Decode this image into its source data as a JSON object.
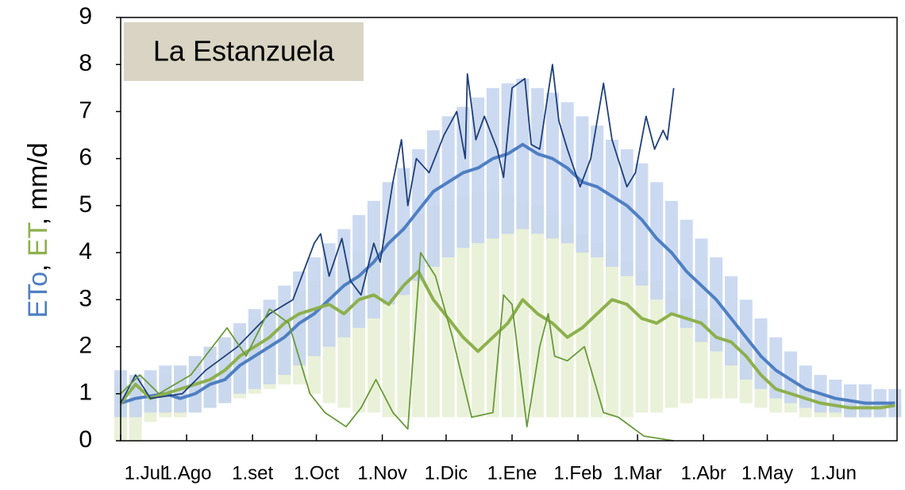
{
  "chart_data": {
    "type": "line",
    "title": "La Estanzuela",
    "ylabel": [
      "ETo",
      ", ",
      "ET",
      ", mm/d"
    ],
    "ylabel_colors": [
      "#4f7fc3",
      "#000000",
      "#8db04d",
      "#000000"
    ],
    "xlim": [
      0,
      365
    ],
    "xticks": [
      {
        "value": 0,
        "label": "1.Jul"
      },
      {
        "value": 31,
        "label": "1.Ago"
      },
      {
        "value": 62,
        "label": "1.set"
      },
      {
        "value": 92,
        "label": "1.Oct"
      },
      {
        "value": 123,
        "label": "1.Nov"
      },
      {
        "value": 153,
        "label": "1.Dic"
      },
      {
        "value": 184,
        "label": "1.Ene"
      },
      {
        "value": 215,
        "label": "1.Feb"
      },
      {
        "value": 243,
        "label": "1.Mar"
      },
      {
        "value": 274,
        "label": "1.Abr"
      },
      {
        "value": 304,
        "label": "1.May"
      },
      {
        "value": 335,
        "label": "1.Jun"
      }
    ],
    "ylim": [
      0,
      9
    ],
    "yticks": [
      0,
      1,
      2,
      3,
      4,
      5,
      6,
      7,
      8,
      9
    ],
    "x": [
      0,
      7,
      14,
      21,
      28,
      35,
      42,
      49,
      56,
      63,
      70,
      77,
      84,
      91,
      98,
      105,
      112,
      119,
      126,
      133,
      140,
      147,
      154,
      161,
      168,
      175,
      182,
      189,
      196,
      203,
      210,
      217,
      224,
      231,
      238,
      245,
      252,
      259,
      266,
      273,
      280,
      287,
      294,
      301,
      308,
      315,
      322,
      329,
      336,
      343,
      350,
      357,
      364
    ],
    "ranges": [
      {
        "color": "#e6efd2",
        "low": [
          0,
          0,
          0.4,
          0.5,
          0.5,
          0.6,
          0.7,
          0.8,
          0.9,
          1.0,
          1.1,
          1.2,
          1.2,
          1.0,
          0.8,
          0.7,
          0.6,
          0.6,
          0.5,
          0.5,
          0.5,
          0.5,
          0.5,
          0.5,
          0.5,
          0.5,
          0.5,
          0.5,
          0.5,
          0.5,
          0.5,
          0.5,
          0.5,
          0.5,
          0.5,
          0.6,
          0.6,
          0.7,
          0.8,
          0.9,
          0.9,
          0.9,
          0.8,
          0.7,
          0.6,
          0.6,
          0.5,
          0.5,
          0.5,
          0.5,
          0.5,
          0.5,
          0.5
        ],
        "high": [
          1.2,
          1.3,
          1.3,
          1.4,
          1.6,
          1.8,
          2.0,
          2.2,
          2.4,
          2.6,
          2.8,
          3.0,
          3.2,
          3.4,
          3.6,
          3.8,
          4.0,
          4.2,
          4.4,
          4.6,
          4.8,
          5.0,
          5.1,
          5.2,
          5.3,
          5.3,
          5.2,
          5.1,
          5.0,
          4.8,
          4.6,
          4.4,
          4.2,
          4.0,
          3.8,
          3.6,
          3.4,
          3.2,
          3.0,
          2.8,
          2.6,
          2.4,
          2.1,
          1.8,
          1.5,
          1.3,
          1.1,
          1.0,
          0.9,
          0.8,
          0.8,
          0.8,
          0.8
        ]
      },
      {
        "color": "#c3d4ee",
        "low": [
          0.5,
          0.5,
          0.6,
          0.6,
          0.6,
          0.6,
          0.7,
          0.8,
          1.0,
          1.1,
          1.2,
          1.4,
          1.6,
          1.8,
          2.0,
          2.2,
          2.4,
          2.6,
          2.9,
          3.1,
          3.4,
          3.7,
          3.9,
          4.1,
          4.2,
          4.3,
          4.4,
          4.5,
          4.4,
          4.3,
          4.2,
          4.0,
          3.9,
          3.7,
          3.5,
          3.3,
          3.0,
          2.7,
          2.4,
          2.1,
          1.9,
          1.6,
          1.3,
          1.1,
          0.9,
          0.8,
          0.7,
          0.6,
          0.6,
          0.5,
          0.5,
          0.5,
          0.5
        ],
        "high": [
          1.5,
          1.4,
          1.5,
          1.6,
          1.6,
          1.8,
          2.0,
          2.2,
          2.5,
          2.8,
          3.0,
          3.3,
          3.6,
          3.9,
          4.2,
          4.5,
          4.8,
          5.1,
          5.5,
          5.8,
          6.2,
          6.6,
          6.9,
          7.1,
          7.3,
          7.5,
          7.6,
          7.7,
          7.5,
          7.4,
          7.2,
          6.9,
          6.7,
          6.4,
          6.2,
          5.9,
          5.5,
          5.1,
          4.7,
          4.3,
          3.9,
          3.5,
          3.0,
          2.6,
          2.2,
          1.9,
          1.6,
          1.4,
          1.3,
          1.2,
          1.2,
          1.1,
          1.1
        ]
      }
    ],
    "series": [
      {
        "color": "#4f7fc3",
        "width": 4,
        "values": [
          0.8,
          0.9,
          0.95,
          1.0,
          0.9,
          1.0,
          1.2,
          1.3,
          1.6,
          1.8,
          2.0,
          2.2,
          2.5,
          2.7,
          3.0,
          3.3,
          3.5,
          3.8,
          4.2,
          4.5,
          4.9,
          5.3,
          5.5,
          5.7,
          5.8,
          6.0,
          6.1,
          6.3,
          6.1,
          6.0,
          5.8,
          5.5,
          5.4,
          5.2,
          5.0,
          4.7,
          4.3,
          4.0,
          3.6,
          3.3,
          3.0,
          2.6,
          2.2,
          1.8,
          1.5,
          1.3,
          1.1,
          1.0,
          0.9,
          0.85,
          0.8,
          0.8,
          0.8
        ]
      },
      {
        "color": "#8db04d",
        "width": 4,
        "values": [
          0.8,
          1.2,
          0.9,
          1.0,
          1.1,
          1.2,
          1.3,
          1.5,
          1.8,
          2.0,
          2.2,
          2.5,
          2.7,
          2.8,
          2.9,
          2.7,
          3.0,
          3.1,
          2.9,
          3.3,
          3.6,
          3.0,
          2.6,
          2.2,
          1.9,
          2.2,
          2.5,
          3.0,
          2.7,
          2.5,
          2.2,
          2.4,
          2.7,
          3.0,
          2.9,
          2.6,
          2.5,
          2.7,
          2.6,
          2.5,
          2.2,
          2.1,
          1.8,
          1.4,
          1.1,
          1.0,
          0.9,
          0.8,
          0.75,
          0.7,
          0.7,
          0.7,
          0.75
        ]
      },
      {
        "color": "#1f3f7a",
        "width": 1.8,
        "x": [
          0,
          7,
          14,
          29,
          40,
          55,
          70,
          81,
          91,
          94,
          98,
          104,
          108,
          113,
          119,
          122,
          128,
          132,
          135,
          139,
          145,
          152,
          158,
          162,
          163,
          167,
          171,
          177,
          180,
          184,
          190,
          193,
          197,
          203,
          206,
          210,
          216,
          221,
          227,
          231,
          238,
          242,
          247,
          251,
          255,
          257,
          260
        ],
        "values": [
          0.8,
          1.4,
          0.9,
          1.0,
          1.5,
          2.0,
          2.7,
          3.0,
          4.2,
          4.4,
          3.5,
          4.3,
          3.4,
          3.1,
          4.2,
          3.8,
          5.5,
          6.4,
          5.0,
          6.0,
          5.7,
          6.5,
          7.0,
          6.0,
          7.8,
          6.4,
          6.9,
          6.2,
          5.6,
          7.5,
          7.7,
          6.3,
          6.2,
          8.0,
          6.8,
          6.2,
          5.4,
          6.0,
          7.6,
          6.4,
          5.4,
          5.7,
          6.9,
          6.2,
          6.6,
          6.4,
          7.5
        ]
      },
      {
        "color": "#6a9a3a",
        "width": 1.8,
        "x": [
          0,
          9,
          18,
          33,
          50,
          59,
          70,
          79,
          89,
          96,
          106,
          113,
          120,
          128,
          135,
          141,
          148,
          156,
          165,
          175,
          180,
          184,
          191,
          197,
          201,
          204,
          210,
          218,
          227,
          234,
          246,
          260
        ],
        "values": [
          1.0,
          1.4,
          1.0,
          1.4,
          2.4,
          1.8,
          2.8,
          2.5,
          1.0,
          0.6,
          0.3,
          0.7,
          1.3,
          0.6,
          0.25,
          4.0,
          3.5,
          2.2,
          0.5,
          0.6,
          3.1,
          2.9,
          0.3,
          2.0,
          2.7,
          1.8,
          1.7,
          2.0,
          0.6,
          0.5,
          0.1,
          0.0
        ]
      }
    ]
  }
}
